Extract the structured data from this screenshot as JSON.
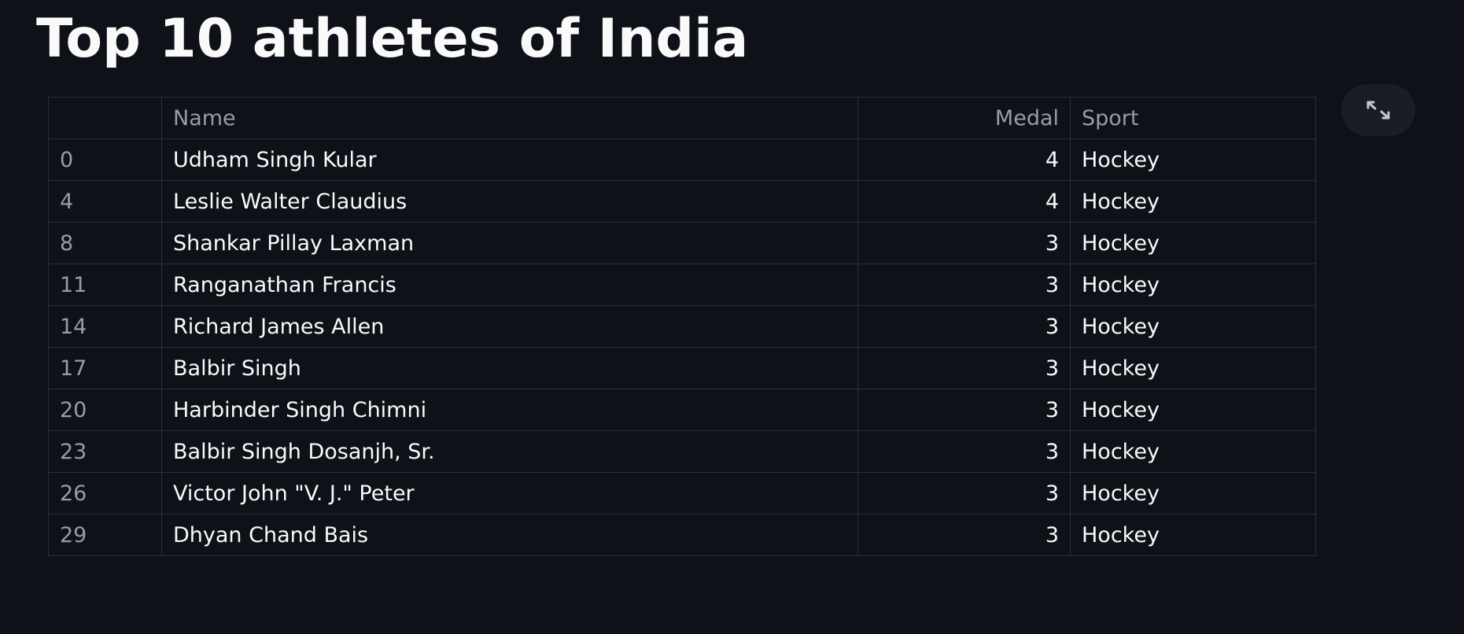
{
  "page": {
    "title": "Top 10 athletes of India"
  },
  "table": {
    "columns": {
      "index": "",
      "name": "Name",
      "medal": "Medal",
      "sport": "Sport"
    },
    "rows": [
      {
        "index": "0",
        "name": "Udham Singh Kular",
        "medal": "4",
        "sport": "Hockey"
      },
      {
        "index": "4",
        "name": "Leslie Walter Claudius",
        "medal": "4",
        "sport": "Hockey"
      },
      {
        "index": "8",
        "name": "Shankar Pillay Laxman",
        "medal": "3",
        "sport": "Hockey"
      },
      {
        "index": "11",
        "name": "Ranganathan Francis",
        "medal": "3",
        "sport": "Hockey"
      },
      {
        "index": "14",
        "name": "Richard James Allen",
        "medal": "3",
        "sport": "Hockey"
      },
      {
        "index": "17",
        "name": "Balbir Singh",
        "medal": "3",
        "sport": "Hockey"
      },
      {
        "index": "20",
        "name": "Harbinder Singh Chimni",
        "medal": "3",
        "sport": "Hockey"
      },
      {
        "index": "23",
        "name": "Balbir Singh Dosanjh, Sr.",
        "medal": "3",
        "sport": "Hockey"
      },
      {
        "index": "26",
        "name": "Victor John \"V. J.\" Peter",
        "medal": "3",
        "sport": "Hockey"
      },
      {
        "index": "29",
        "name": "Dhyan Chand Bais",
        "medal": "3",
        "sport": "Hockey"
      }
    ]
  },
  "toolbar": {
    "expand_icon": "expand-icon"
  },
  "colors": {
    "background": "#0e1117",
    "text": "#fafafa",
    "muted_text": "#9a9ca3",
    "grid_line": "#2b2f38"
  }
}
